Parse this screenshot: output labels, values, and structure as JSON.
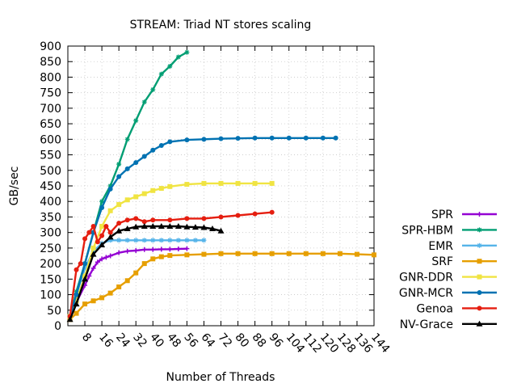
{
  "chart_data": {
    "type": "line",
    "title": "STREAM: Triad NT stores scaling",
    "xlabel": "Number of Threads",
    "ylabel": "GB/sec",
    "xlim": [
      0,
      144
    ],
    "ylim": [
      0,
      900
    ],
    "x_ticks": [
      8,
      16,
      24,
      32,
      40,
      48,
      56,
      64,
      72,
      80,
      88,
      96,
      104,
      112,
      120,
      128,
      136,
      144
    ],
    "y_ticks": [
      0,
      50,
      100,
      150,
      200,
      250,
      300,
      350,
      400,
      450,
      500,
      550,
      600,
      650,
      700,
      750,
      800,
      850,
      900
    ],
    "grid": true,
    "legend_position": "outside-right",
    "series": [
      {
        "name": "SPR",
        "color": "#9400d3",
        "marker": "plus",
        "points": [
          [
            1,
            30
          ],
          [
            4,
            75
          ],
          [
            8,
            130
          ],
          [
            10,
            160
          ],
          [
            12,
            185
          ],
          [
            14,
            205
          ],
          [
            16,
            215
          ],
          [
            18,
            220
          ],
          [
            20,
            225
          ],
          [
            24,
            235
          ],
          [
            28,
            240
          ],
          [
            32,
            242
          ],
          [
            36,
            245
          ],
          [
            40,
            245
          ],
          [
            44,
            246
          ],
          [
            48,
            246
          ],
          [
            52,
            247
          ],
          [
            56,
            248
          ]
        ]
      },
      {
        "name": "SPR-HBM",
        "color": "#009e73",
        "marker": "star",
        "points": [
          [
            1,
            30
          ],
          [
            4,
            110
          ],
          [
            8,
            200
          ],
          [
            12,
            300
          ],
          [
            16,
            400
          ],
          [
            20,
            450
          ],
          [
            24,
            520
          ],
          [
            28,
            600
          ],
          [
            32,
            660
          ],
          [
            36,
            720
          ],
          [
            40,
            760
          ],
          [
            44,
            810
          ],
          [
            48,
            835
          ],
          [
            52,
            865
          ],
          [
            56,
            880
          ]
        ]
      },
      {
        "name": "EMR",
        "color": "#56b4e9",
        "marker": "star",
        "points": [
          [
            1,
            30
          ],
          [
            4,
            100
          ],
          [
            8,
            185
          ],
          [
            12,
            240
          ],
          [
            16,
            265
          ],
          [
            20,
            275
          ],
          [
            24,
            275
          ],
          [
            28,
            275
          ],
          [
            32,
            275
          ],
          [
            36,
            275
          ],
          [
            40,
            275
          ],
          [
            44,
            275
          ],
          [
            48,
            275
          ],
          [
            52,
            275
          ],
          [
            56,
            275
          ],
          [
            60,
            275
          ],
          [
            64,
            275
          ]
        ]
      },
      {
        "name": "SRF",
        "color": "#e69f00",
        "marker": "square",
        "points": [
          [
            1,
            20
          ],
          [
            4,
            40
          ],
          [
            8,
            70
          ],
          [
            12,
            80
          ],
          [
            16,
            90
          ],
          [
            20,
            105
          ],
          [
            24,
            125
          ],
          [
            28,
            145
          ],
          [
            32,
            170
          ],
          [
            36,
            200
          ],
          [
            40,
            215
          ],
          [
            44,
            222
          ],
          [
            48,
            226
          ],
          [
            56,
            228
          ],
          [
            64,
            230
          ],
          [
            72,
            232
          ],
          [
            80,
            232
          ],
          [
            88,
            232
          ],
          [
            96,
            232
          ],
          [
            104,
            232
          ],
          [
            112,
            232
          ],
          [
            120,
            232
          ],
          [
            128,
            232
          ],
          [
            136,
            230
          ],
          [
            144,
            228
          ]
        ]
      },
      {
        "name": "GNR-DDR",
        "color": "#f0e442",
        "marker": "square",
        "points": [
          [
            1,
            30
          ],
          [
            4,
            80
          ],
          [
            8,
            160
          ],
          [
            12,
            250
          ],
          [
            16,
            320
          ],
          [
            20,
            370
          ],
          [
            24,
            390
          ],
          [
            28,
            405
          ],
          [
            32,
            415
          ],
          [
            36,
            425
          ],
          [
            40,
            435
          ],
          [
            44,
            442
          ],
          [
            48,
            448
          ],
          [
            56,
            455
          ],
          [
            64,
            458
          ],
          [
            72,
            458
          ],
          [
            80,
            458
          ],
          [
            88,
            458
          ],
          [
            96,
            458
          ]
        ]
      },
      {
        "name": "GNR-MCR",
        "color": "#0072b2",
        "marker": "circle",
        "points": [
          [
            1,
            30
          ],
          [
            4,
            100
          ],
          [
            8,
            200
          ],
          [
            12,
            300
          ],
          [
            16,
            380
          ],
          [
            20,
            440
          ],
          [
            24,
            480
          ],
          [
            28,
            505
          ],
          [
            32,
            525
          ],
          [
            36,
            545
          ],
          [
            40,
            565
          ],
          [
            44,
            580
          ],
          [
            48,
            592
          ],
          [
            56,
            598
          ],
          [
            64,
            600
          ],
          [
            72,
            602
          ],
          [
            80,
            603
          ],
          [
            88,
            604
          ],
          [
            96,
            604
          ],
          [
            104,
            604
          ],
          [
            112,
            604
          ],
          [
            120,
            604
          ],
          [
            126,
            604
          ]
        ]
      },
      {
        "name": "Genoa",
        "color": "#e51e10",
        "marker": "circle",
        "points": [
          [
            1,
            30
          ],
          [
            4,
            180
          ],
          [
            6,
            200
          ],
          [
            8,
            280
          ],
          [
            10,
            300
          ],
          [
            12,
            320
          ],
          [
            14,
            270
          ],
          [
            16,
            290
          ],
          [
            18,
            320
          ],
          [
            20,
            300
          ],
          [
            24,
            330
          ],
          [
            28,
            340
          ],
          [
            32,
            345
          ],
          [
            36,
            335
          ],
          [
            40,
            340
          ],
          [
            48,
            340
          ],
          [
            56,
            345
          ],
          [
            64,
            345
          ],
          [
            72,
            350
          ],
          [
            80,
            355
          ],
          [
            88,
            360
          ],
          [
            96,
            365
          ]
        ]
      },
      {
        "name": "NV-Grace",
        "color": "#000000",
        "marker": "triangle",
        "points": [
          [
            1,
            20
          ],
          [
            4,
            70
          ],
          [
            8,
            150
          ],
          [
            12,
            230
          ],
          [
            16,
            260
          ],
          [
            20,
            285
          ],
          [
            24,
            305
          ],
          [
            28,
            312
          ],
          [
            32,
            318
          ],
          [
            36,
            320
          ],
          [
            40,
            320
          ],
          [
            44,
            320
          ],
          [
            48,
            320
          ],
          [
            52,
            320
          ],
          [
            56,
            318
          ],
          [
            60,
            317
          ],
          [
            64,
            316
          ],
          [
            68,
            312
          ],
          [
            72,
            305
          ]
        ]
      }
    ]
  }
}
